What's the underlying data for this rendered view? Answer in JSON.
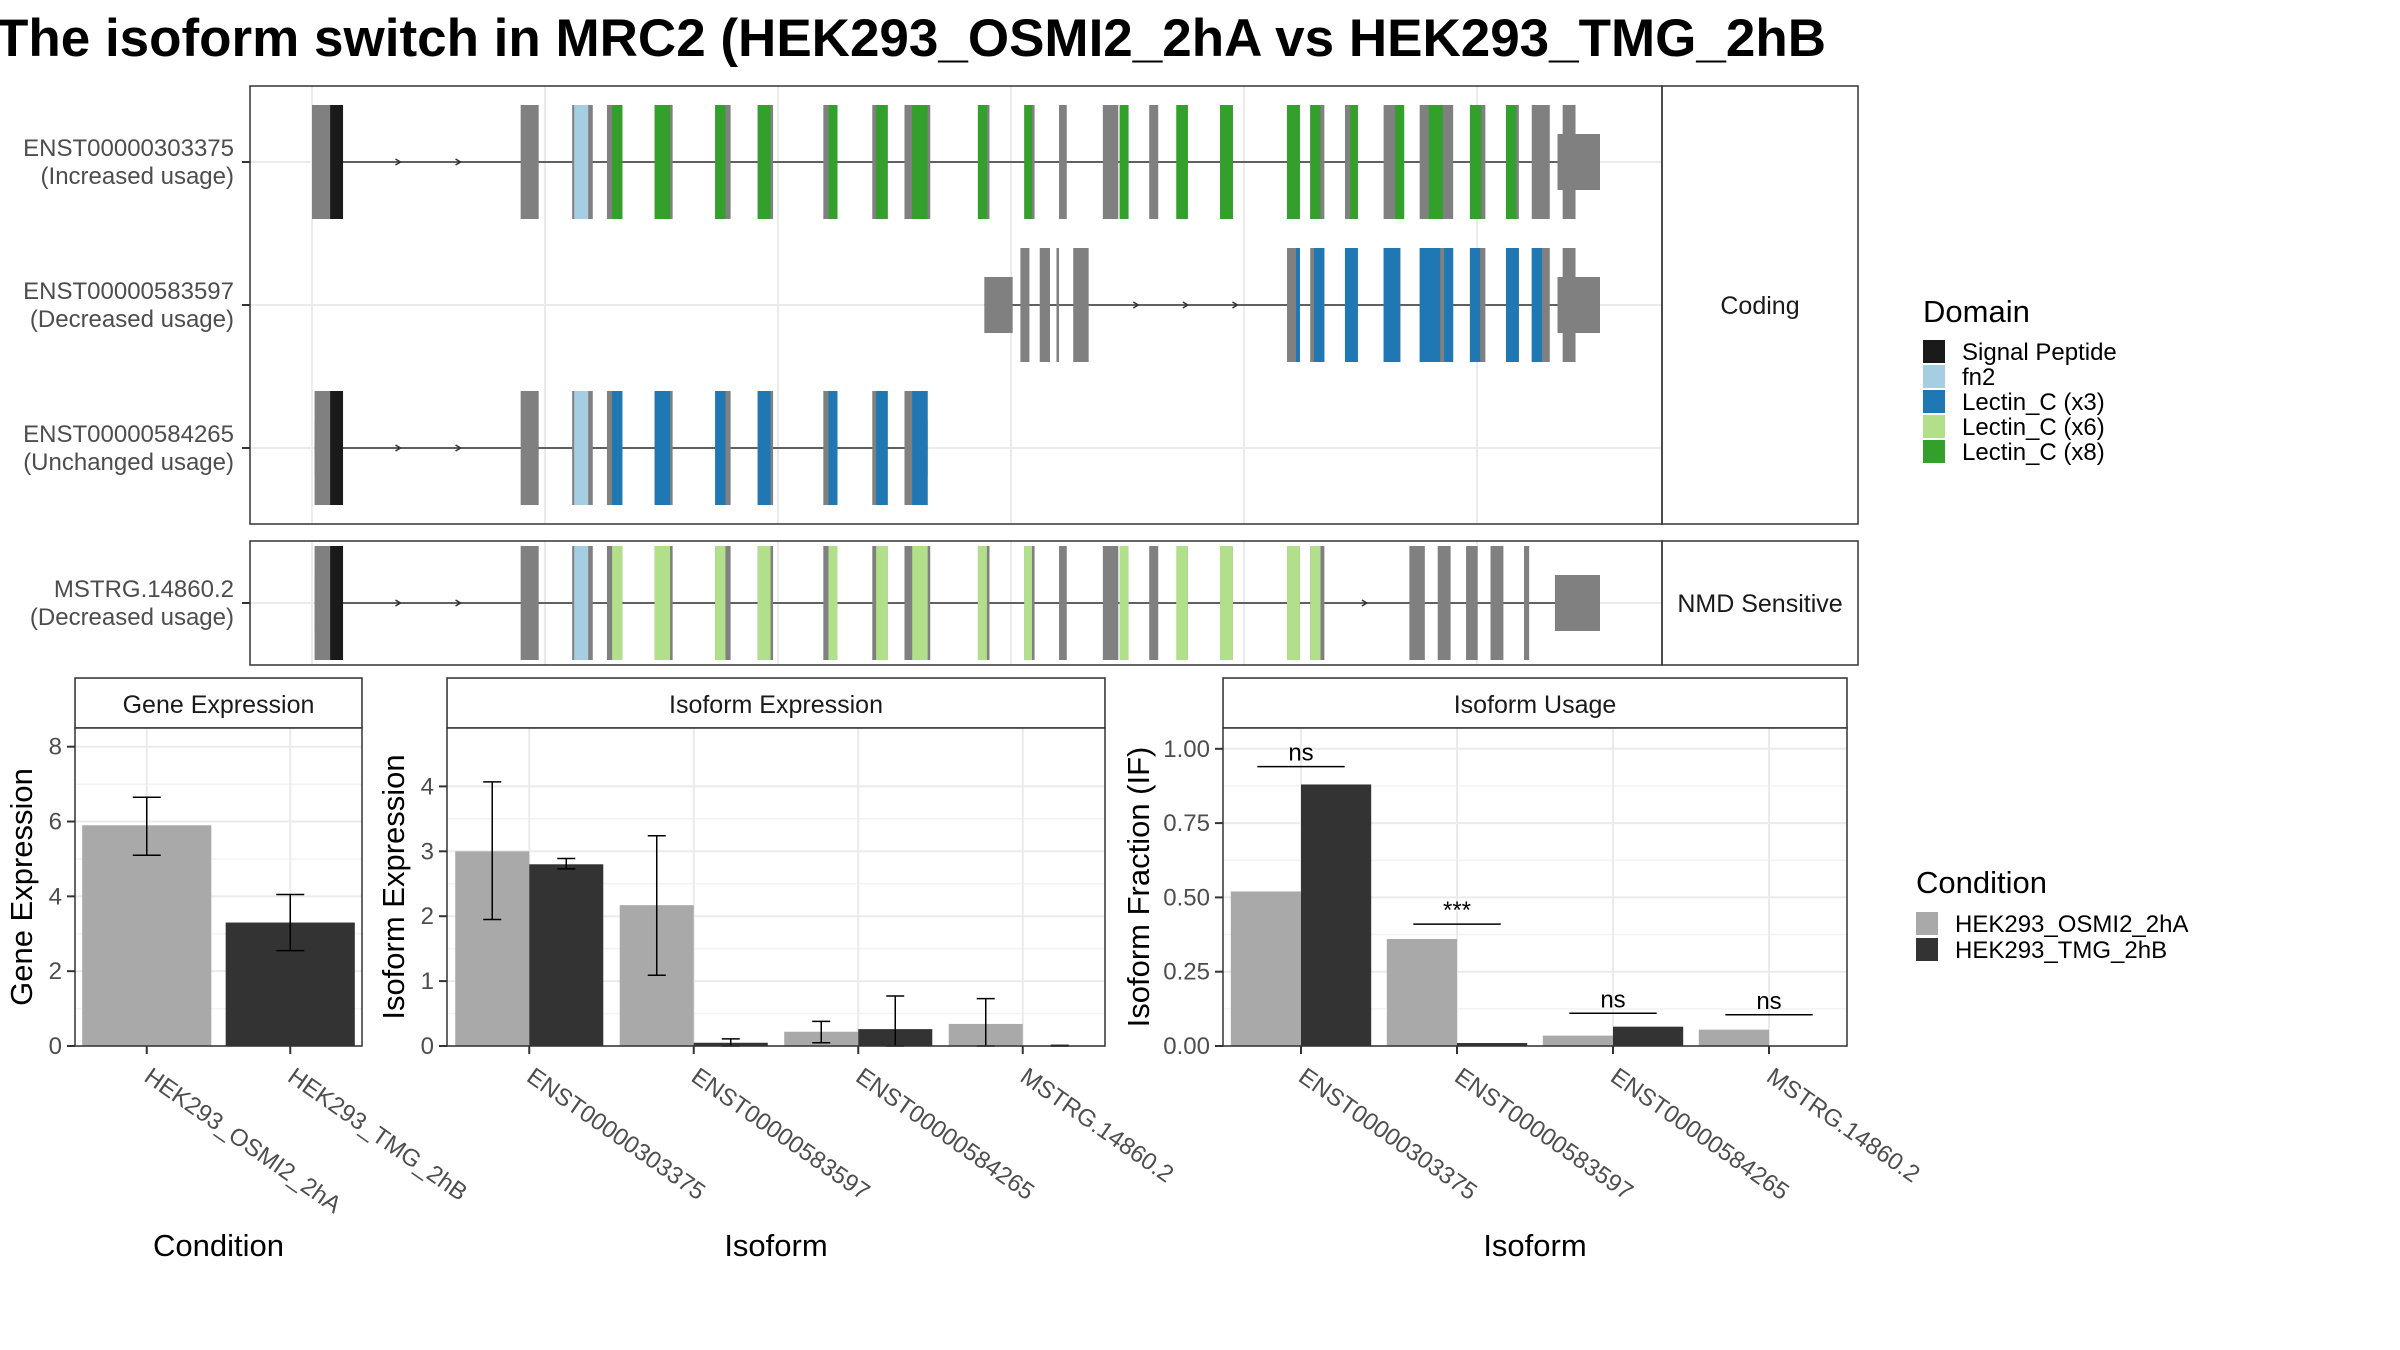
{
  "title": "The isoform switch in MRC2 (HEK293_OSMI2_2hA vs HEK293_TMG_2hB",
  "colors": {
    "Signal Peptide": "#1a1a1a",
    "fn2": "#a6cee3",
    "Lectin_C (x3)": "#1f78b4",
    "Lectin_C (x6)": "#b2df8a",
    "Lectin_C (x8)": "#33a02c",
    "exon": "#808080",
    "cond1": "#a9a9a9",
    "cond2": "#333333"
  },
  "structure": {
    "genome_range": [
      0,
      1000
    ],
    "facets": [
      {
        "label": "Coding",
        "isoforms": [
          {
            "id": "ENST00000303375",
            "usage": "(Increased usage)",
            "domain": "Lectin_C (x8)",
            "utr_start": [
              0,
              14
            ],
            "utr_end": [
              967,
              1000
            ],
            "exons": [
              [
                0,
                22
              ],
              [
                162,
                176
              ],
              [
                202,
                218
              ],
              [
                229,
                241
              ],
              [
                266,
                280
              ],
              [
                313,
                325
              ],
              [
                346,
                358
              ],
              [
                397,
                408
              ],
              [
                435,
                447
              ],
              [
                460,
                480
              ],
              [
                517,
                526
              ],
              [
                553,
                561
              ],
              [
                580,
                586
              ],
              [
                614,
                626
              ],
              [
                650,
                657
              ],
              [
                673,
                680
              ],
              [
                705,
                715
              ],
              [
                757,
                767
              ],
              [
                775,
                786
              ],
              [
                802,
                812
              ],
              [
                832,
                845
              ],
              [
                860,
                886
              ],
              [
                899,
                911
              ],
              [
                927,
                937
              ],
              [
                947,
                961
              ],
              [
                971,
                981
              ]
            ],
            "signal": [
              11,
              21
            ],
            "fn2": [
              [
                202,
                216
              ]
            ],
            "domains": [
              [
                233,
                241
              ],
              [
                266,
                278
              ],
              [
                313,
                321
              ],
              [
                346,
                356
              ],
              [
                401,
                408
              ],
              [
                438,
                447
              ],
              [
                466,
                478
              ],
              [
                517,
                524
              ],
              [
                553,
                559
              ],
              [
                627,
                634
              ],
              [
                671,
                680
              ],
              [
                705,
                715
              ],
              [
                757,
                767
              ],
              [
                775,
                783
              ],
              [
                806,
                812
              ],
              [
                841,
                848
              ],
              [
                867,
                878
              ],
              [
                899,
                908
              ],
              [
                927,
                935
              ]
            ]
          },
          {
            "id": "ENST00000583597",
            "usage": "(Decreased usage)",
            "domain": "Lectin_C (x3)",
            "utr_start": [
              522,
              544
            ],
            "utr_end": [
              967,
              1000
            ],
            "exons": [
              [
                522,
                544
              ],
              [
                550,
                557
              ],
              [
                565,
                573
              ],
              [
                578,
                580
              ],
              [
                591,
                603
              ],
              [
                757,
                767
              ],
              [
                775,
                786
              ],
              [
                802,
                812
              ],
              [
                832,
                845
              ],
              [
                860,
                886
              ],
              [
                899,
                911
              ],
              [
                927,
                937
              ],
              [
                947,
                961
              ],
              [
                971,
                981
              ]
            ],
            "signal": null,
            "fn2": [],
            "domains": [
              [
                764,
                767
              ],
              [
                778,
                786
              ],
              [
                802,
                812
              ],
              [
                832,
                845
              ],
              [
                860,
                876
              ],
              [
                879,
                886
              ],
              [
                899,
                907
              ],
              [
                927,
                937
              ],
              [
                947,
                955
              ]
            ]
          },
          {
            "id": "ENST00000584265",
            "usage": "(Unchanged usage)",
            "domain": "Lectin_C (x3)",
            "utr_start": [
              2,
              14
            ],
            "utr_end": [
              468,
              478
            ],
            "exons": [
              [
                2,
                22
              ],
              [
                162,
                176
              ],
              [
                202,
                218
              ],
              [
                229,
                241
              ],
              [
                266,
                280
              ],
              [
                313,
                325
              ],
              [
                346,
                358
              ],
              [
                397,
                408
              ],
              [
                435,
                447
              ],
              [
                460,
                478
              ]
            ],
            "signal": [
              11,
              21
            ],
            "fn2": [
              [
                202,
                216
              ]
            ],
            "domains": [
              [
                233,
                241
              ],
              [
                266,
                278
              ],
              [
                313,
                321
              ],
              [
                346,
                356
              ],
              [
                401,
                408
              ],
              [
                438,
                447
              ],
              [
                466,
                478
              ]
            ]
          }
        ]
      },
      {
        "label": "NMD Sensitive",
        "isoforms": [
          {
            "id": "MSTRG.14860.2",
            "usage": "(Decreased usage)",
            "domain": "Lectin_C (x6)",
            "utr_start": [
              2,
              14
            ],
            "utr_end": [
              965,
              1000
            ],
            "exons": [
              [
                2,
                22
              ],
              [
                162,
                176
              ],
              [
                202,
                218
              ],
              [
                229,
                241
              ],
              [
                266,
                280
              ],
              [
                313,
                325
              ],
              [
                346,
                358
              ],
              [
                397,
                408
              ],
              [
                435,
                447
              ],
              [
                460,
                480
              ],
              [
                517,
                526
              ],
              [
                553,
                561
              ],
              [
                580,
                586
              ],
              [
                614,
                626
              ],
              [
                650,
                657
              ],
              [
                673,
                680
              ],
              [
                705,
                715
              ],
              [
                757,
                767
              ],
              [
                775,
                786
              ],
              [
                852,
                864
              ],
              [
                874,
                884
              ],
              [
                896,
                905
              ],
              [
                915,
                925
              ],
              [
                941,
                945
              ]
            ],
            "signal": [
              11,
              21
            ],
            "fn2": [
              [
                202,
                216
              ]
            ],
            "domains": [
              [
                233,
                241
              ],
              [
                266,
                278
              ],
              [
                313,
                321
              ],
              [
                346,
                356
              ],
              [
                401,
                408
              ],
              [
                438,
                447
              ],
              [
                466,
                478
              ],
              [
                517,
                524
              ],
              [
                553,
                559
              ],
              [
                627,
                634
              ],
              [
                671,
                680
              ],
              [
                705,
                715
              ],
              [
                757,
                767
              ],
              [
                775,
                783
              ]
            ]
          }
        ]
      }
    ],
    "legend_title": "Domain",
    "legend": [
      "Signal Peptide",
      "fn2",
      "Lectin_C (x3)",
      "Lectin_C (x6)",
      "Lectin_C (x8)"
    ]
  },
  "chart_data": [
    {
      "type": "bar",
      "title": "Gene Expression",
      "xlabel": "Condition",
      "ylabel": "Gene Expression",
      "ylim": [
        0,
        8.5
      ],
      "yticks": [
        0,
        2,
        4,
        6,
        8
      ],
      "ytick_labels": [
        "0",
        "2",
        "4",
        "6",
        "8"
      ],
      "categories": [
        "HEK293_OSMI2_2hA",
        "HEK293_TMG_2hB"
      ],
      "values": [
        5.9,
        3.3
      ],
      "errors": [
        [
          5.1,
          6.65
        ],
        [
          2.55,
          4.05
        ]
      ],
      "grid": true
    },
    {
      "type": "bar",
      "title": "Isoform Expression",
      "xlabel": "Isoform",
      "ylabel": "Isoform Expression",
      "ylim": [
        0,
        4.9
      ],
      "yticks": [
        0,
        1,
        2,
        3,
        4
      ],
      "ytick_labels": [
        "0",
        "1",
        "2",
        "3",
        "4"
      ],
      "categories": [
        "ENST00000303375",
        "ENST00000583597",
        "ENST00000584265",
        "MSTRG.14860.2"
      ],
      "series": [
        {
          "name": "HEK293_OSMI2_2hA",
          "values": [
            3.0,
            2.17,
            0.22,
            0.34
          ],
          "errors": [
            [
              1.95,
              4.07
            ],
            [
              1.09,
              3.24
            ],
            [
              0.05,
              0.38
            ],
            [
              0.0,
              0.73
            ]
          ]
        },
        {
          "name": "HEK293_TMG_2hB",
          "values": [
            2.8,
            0.05,
            0.26,
            0.0
          ],
          "errors": [
            [
              2.73,
              2.89
            ],
            [
              0.0,
              0.11
            ],
            [
              0.0,
              0.77
            ],
            [
              0.0,
              0.01
            ]
          ]
        }
      ],
      "grid": true
    },
    {
      "type": "bar",
      "title": "Isoform Usage",
      "xlabel": "Isoform",
      "ylabel": "Isoform Fraction (IF)",
      "ylim": [
        0,
        1.07
      ],
      "yticks": [
        0,
        0.25,
        0.5,
        0.75,
        1.0
      ],
      "ytick_labels": [
        "0.00",
        "0.25",
        "0.50",
        "0.75",
        "1.00"
      ],
      "categories": [
        "ENST00000303375",
        "ENST00000583597",
        "ENST00000584265",
        "MSTRG.14860.2"
      ],
      "series": [
        {
          "name": "HEK293_OSMI2_2hA",
          "values": [
            0.52,
            0.36,
            0.035,
            0.055
          ]
        },
        {
          "name": "HEK293_TMG_2hB",
          "values": [
            0.88,
            0.01,
            0.065,
            0.0
          ]
        }
      ],
      "significance": [
        {
          "label": "ns",
          "y": 0.94
        },
        {
          "label": "***",
          "y": 0.41
        },
        {
          "label": "ns",
          "y": 0.11
        },
        {
          "label": "ns",
          "y": 0.105
        }
      ],
      "grid": true
    }
  ],
  "condition_legend": {
    "title": "Condition",
    "items": [
      "HEK293_OSMI2_2hA",
      "HEK293_TMG_2hB"
    ]
  }
}
